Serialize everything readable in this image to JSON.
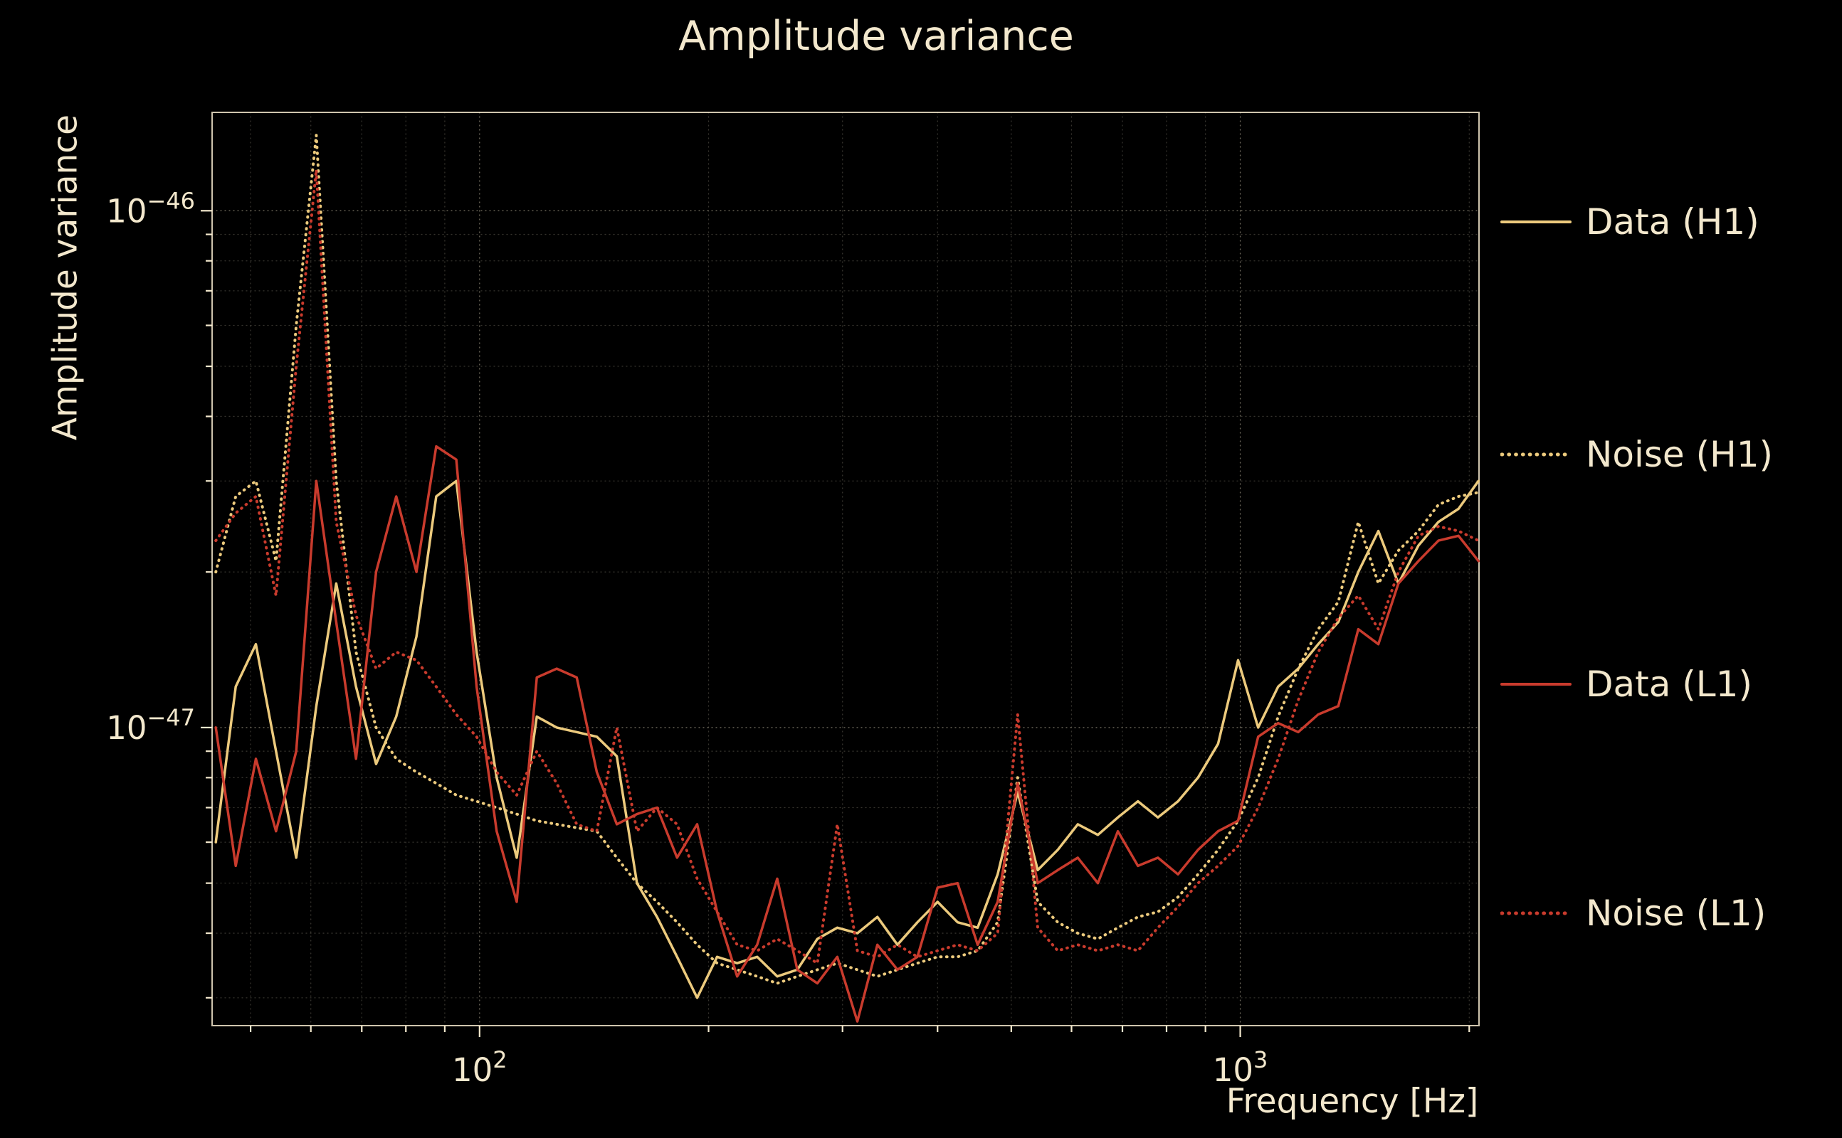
{
  "figure": {
    "title": "Amplitude variance",
    "xlabel": "Frequency [Hz]",
    "ylabel": "Amplitude variance"
  },
  "chart_data": {
    "type": "line",
    "title": "Amplitude variance",
    "xlabel": "Frequency [Hz]",
    "ylabel": "Amplitude variance",
    "grid": true,
    "legend_position": "outside-right",
    "x_axis": {
      "scale": "log",
      "lim": [
        44.5,
        2060
      ],
      "major_ticks": [
        {
          "value": 100,
          "base": "10",
          "exp": "2"
        },
        {
          "value": 1000,
          "base": "10",
          "exp": "3"
        }
      ],
      "minor_ticks": [
        50,
        60,
        70,
        80,
        90,
        200,
        300,
        400,
        500,
        600,
        700,
        800,
        900,
        2000
      ]
    },
    "y_axis": {
      "scale": "log",
      "lim": [
        2.65e-48,
        1.55e-46
      ],
      "major_ticks": [
        {
          "value": 1e-46,
          "base": "10",
          "exp": "−46"
        },
        {
          "value": 1e-47,
          "base": "10",
          "exp": "−47"
        }
      ],
      "minor_ticks": [
        3e-48,
        4e-48,
        5e-48,
        6e-48,
        7e-48,
        8e-48,
        9e-48,
        2e-47,
        3e-47,
        4e-47,
        5e-47,
        6e-47,
        7e-47,
        8e-47,
        9e-47
      ]
    },
    "colors": {
      "h1": "#ecca7d",
      "l1": "#c93b2d",
      "text": "#f3e8cd",
      "grid": "#f3e8cd",
      "background": "#000000"
    },
    "value_scale": 1e-48,
    "frequencies_hz": [
      45.0,
      47.8,
      50.8,
      54.0,
      57.4,
      61.0,
      64.8,
      68.8,
      73.1,
      77.7,
      82.6,
      87.7,
      93.2,
      99.1,
      105.3,
      111.9,
      118.9,
      126.3,
      134.2,
      142.6,
      151.5,
      161.0,
      171.1,
      181.8,
      193.2,
      205.2,
      218.1,
      231.7,
      246.2,
      261.6,
      278.0,
      295.3,
      313.8,
      333.4,
      354.3,
      376.4,
      400.0,
      425.0,
      451.6,
      479.8,
      509.8,
      541.7,
      575.6,
      611.5,
      649.8,
      690.4,
      733.6,
      779.4,
      828.2,
      880.0,
      935.0,
      993.4,
      1055.6,
      1121.6,
      1191.7,
      1266.2,
      1345.4,
      1429.5,
      1518.9,
      1613.9,
      1714.8,
      1822.0,
      1935.9,
      2057.0
    ],
    "series": [
      {
        "name": "Data (H1)",
        "color_key": "h1",
        "linestyle": "solid",
        "values": [
          6.0,
          12.0,
          14.5,
          9.0,
          5.6,
          11.0,
          19.0,
          12.0,
          8.5,
          10.5,
          15.0,
          28.0,
          30.0,
          14.0,
          8.0,
          5.6,
          10.5,
          10.0,
          9.8,
          9.6,
          8.8,
          5.0,
          4.3,
          3.6,
          3.0,
          3.6,
          3.5,
          3.6,
          3.3,
          3.4,
          3.9,
          4.1,
          4.0,
          4.3,
          3.8,
          4.2,
          4.6,
          4.2,
          4.1,
          5.2,
          7.5,
          5.3,
          5.8,
          6.5,
          6.2,
          6.7,
          7.2,
          6.7,
          7.2,
          8.0,
          9.3,
          13.5,
          10.0,
          12.0,
          13.0,
          14.5,
          16.0,
          20.0,
          24.0,
          19.0,
          22.5,
          25.0,
          26.5,
          30.0
        ]
      },
      {
        "name": "Noise (H1)",
        "color_key": "h1",
        "linestyle": "dotted",
        "values": [
          20.0,
          28.0,
          30.0,
          21.0,
          60.0,
          140.0,
          30.0,
          14.0,
          10.0,
          8.7,
          8.2,
          7.8,
          7.4,
          7.2,
          7.0,
          6.8,
          6.6,
          6.5,
          6.4,
          6.3,
          5.6,
          5.0,
          4.6,
          4.2,
          3.8,
          3.5,
          3.4,
          3.3,
          3.2,
          3.3,
          3.4,
          3.5,
          3.4,
          3.3,
          3.4,
          3.5,
          3.6,
          3.6,
          3.7,
          4.2,
          8.0,
          4.6,
          4.2,
          4.0,
          3.9,
          4.1,
          4.3,
          4.4,
          4.7,
          5.2,
          5.8,
          6.6,
          8.0,
          10.5,
          13.0,
          15.5,
          17.5,
          25.0,
          19.0,
          22.0,
          24.0,
          27.0,
          28.0,
          28.5
        ]
      },
      {
        "name": "Data (L1)",
        "color_key": "l1",
        "linestyle": "solid",
        "values": [
          10.0,
          5.4,
          8.7,
          6.3,
          9.0,
          30.0,
          16.0,
          8.7,
          20.0,
          28.0,
          20.0,
          35.0,
          33.0,
          12.0,
          6.3,
          4.6,
          12.5,
          13.0,
          12.5,
          8.2,
          6.5,
          6.8,
          7.0,
          5.6,
          6.5,
          4.4,
          3.3,
          3.8,
          5.1,
          3.4,
          3.2,
          3.6,
          2.7,
          3.8,
          3.4,
          3.6,
          4.9,
          5.0,
          3.8,
          4.6,
          7.8,
          5.0,
          5.3,
          5.6,
          5.0,
          6.3,
          5.4,
          5.6,
          5.2,
          5.8,
          6.3,
          6.6,
          9.6,
          10.2,
          9.8,
          10.6,
          11.0,
          15.5,
          14.5,
          19.0,
          21.0,
          23.0,
          23.5,
          21.0
        ]
      },
      {
        "name": "Noise (L1)",
        "color_key": "l1",
        "linestyle": "dotted",
        "values": [
          23.0,
          26.0,
          28.0,
          18.0,
          50.0,
          120.0,
          25.0,
          16.5,
          13.0,
          14.0,
          13.5,
          12.0,
          10.6,
          9.6,
          8.2,
          7.4,
          9.0,
          7.8,
          6.5,
          6.3,
          10.0,
          6.3,
          7.0,
          6.5,
          5.1,
          4.4,
          3.8,
          3.7,
          3.9,
          3.7,
          3.5,
          6.5,
          3.7,
          3.6,
          3.8,
          3.6,
          3.7,
          3.8,
          3.7,
          4.0,
          10.6,
          4.1,
          3.7,
          3.8,
          3.7,
          3.8,
          3.7,
          4.1,
          4.5,
          5.0,
          5.4,
          5.9,
          7.0,
          8.7,
          11.3,
          14.0,
          16.3,
          18.0,
          15.5,
          20.0,
          23.5,
          24.5,
          24.0,
          23.0
        ]
      }
    ],
    "legend": [
      {
        "label": "Data (H1)",
        "color_key": "h1",
        "linestyle": "solid"
      },
      {
        "label": "Noise (H1)",
        "color_key": "h1",
        "linestyle": "dotted"
      },
      {
        "label": "Data (L1)",
        "color_key": "l1",
        "linestyle": "solid"
      },
      {
        "label": "Noise (L1)",
        "color_key": "l1",
        "linestyle": "dotted"
      }
    ]
  }
}
